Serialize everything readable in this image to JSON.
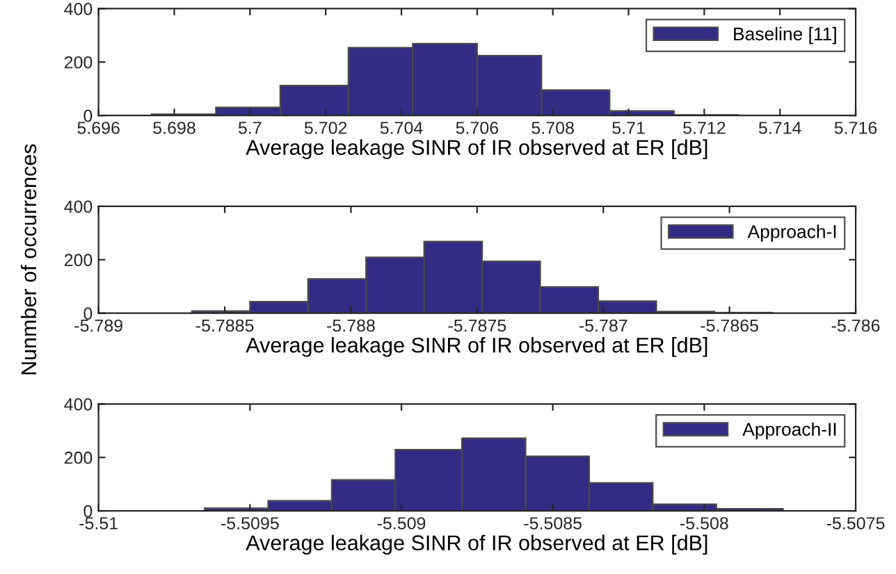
{
  "chart_data": [
    {
      "type": "histogram",
      "xlabel": "Average leakage SINR of IR observed at ER [dB]",
      "bins": [
        5.6974,
        5.6991,
        5.7008,
        5.7026,
        5.7043,
        5.706,
        5.7077,
        5.7095,
        5.7112,
        5.7129
      ],
      "series": [
        {
          "name": "Baseline [11]",
          "color": "#322c85",
          "values": [
            5,
            30,
            112,
            254,
            269,
            224,
            95,
            17,
            2
          ]
        }
      ],
      "xlim": [
        5.696,
        5.716
      ],
      "xticks": [
        5.696,
        5.698,
        5.7,
        5.702,
        5.704,
        5.706,
        5.708,
        5.71,
        5.712,
        5.714,
        5.716
      ],
      "ylim": [
        0,
        400
      ],
      "yticks": [
        0,
        200,
        400
      ],
      "legend": "top right",
      "grid": false
    },
    {
      "type": "histogram",
      "xlabel": "Average leakage SINR of IR observed at ER [dB]",
      "ylabel": "Nunmber of occurrences",
      "bins": [
        -5.78863,
        -5.7884,
        -5.78817,
        -5.78794,
        -5.78771,
        -5.78748,
        -5.78725,
        -5.78702,
        -5.78679,
        -5.78656,
        -5.78633
      ],
      "series": [
        {
          "name": "Approach-I",
          "color": "#322c85",
          "values": [
            8,
            43,
            128,
            209,
            268,
            194,
            98,
            45,
            6,
            2
          ]
        }
      ],
      "xlim": [
        -5.789,
        -5.786
      ],
      "xticks": [
        -5.789,
        -5.7885,
        -5.788,
        -5.7875,
        -5.787,
        -5.7865,
        -5.786
      ],
      "ylim": [
        0,
        400
      ],
      "yticks": [
        0,
        200,
        400
      ],
      "legend": "top right",
      "grid": false
    },
    {
      "type": "histogram",
      "xlabel": "Average leakage SINR of IR observed at ER [dB]",
      "bins": [
        -5.50965,
        -5.50944,
        -5.50923,
        -5.50902,
        -5.5088,
        -5.50859,
        -5.50838,
        -5.50817,
        -5.50796,
        -5.50774
      ],
      "series": [
        {
          "name": "Approach-II",
          "color": "#322c85",
          "values": [
            10,
            38,
            116,
            229,
            272,
            204,
            105,
            25,
            8
          ]
        }
      ],
      "xlim": [
        -5.51,
        -5.5075
      ],
      "xticks": [
        -5.51,
        -5.5095,
        -5.509,
        -5.5085,
        -5.508,
        -5.5075
      ],
      "ylim": [
        0,
        400
      ],
      "yticks": [
        0,
        200,
        400
      ],
      "legend": "top right",
      "grid": false
    }
  ]
}
